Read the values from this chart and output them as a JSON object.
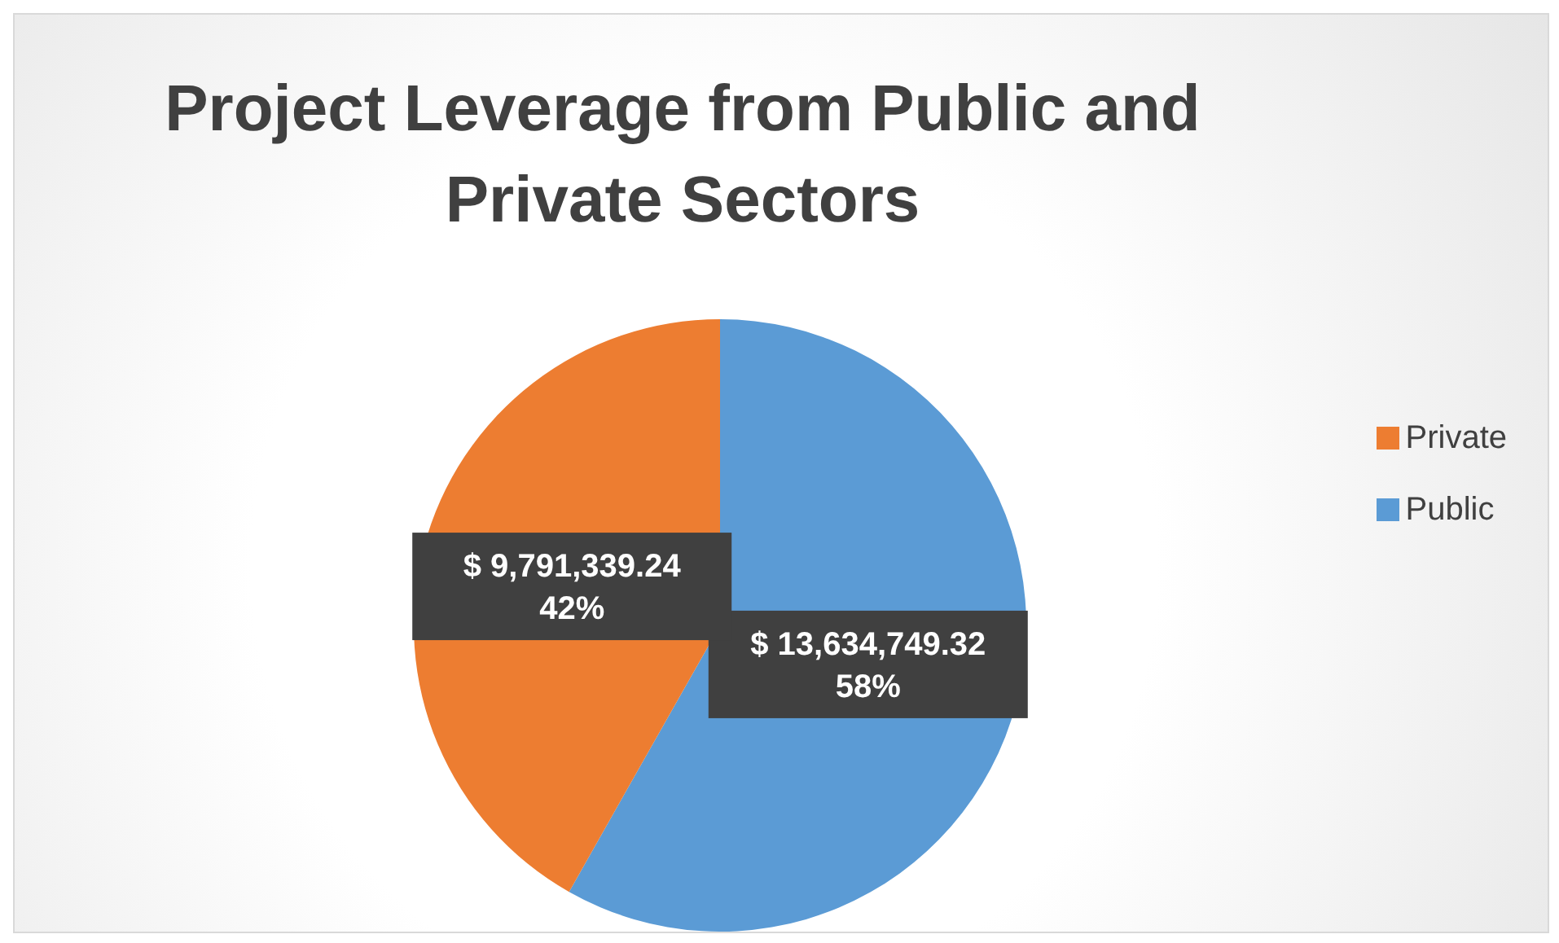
{
  "chart_data": {
    "type": "pie",
    "title": "Project Leverage from Public and Private Sectors",
    "categories": [
      "Public",
      "Private"
    ],
    "values": [
      13634749.32,
      9791339.24
    ],
    "colors": [
      "#5b9bd5",
      "#ed7d31"
    ],
    "value_labels": [
      "$ 13,634,749.32\n58%",
      "$ 9,791,339.24\n42%"
    ],
    "legend": "right"
  }
}
